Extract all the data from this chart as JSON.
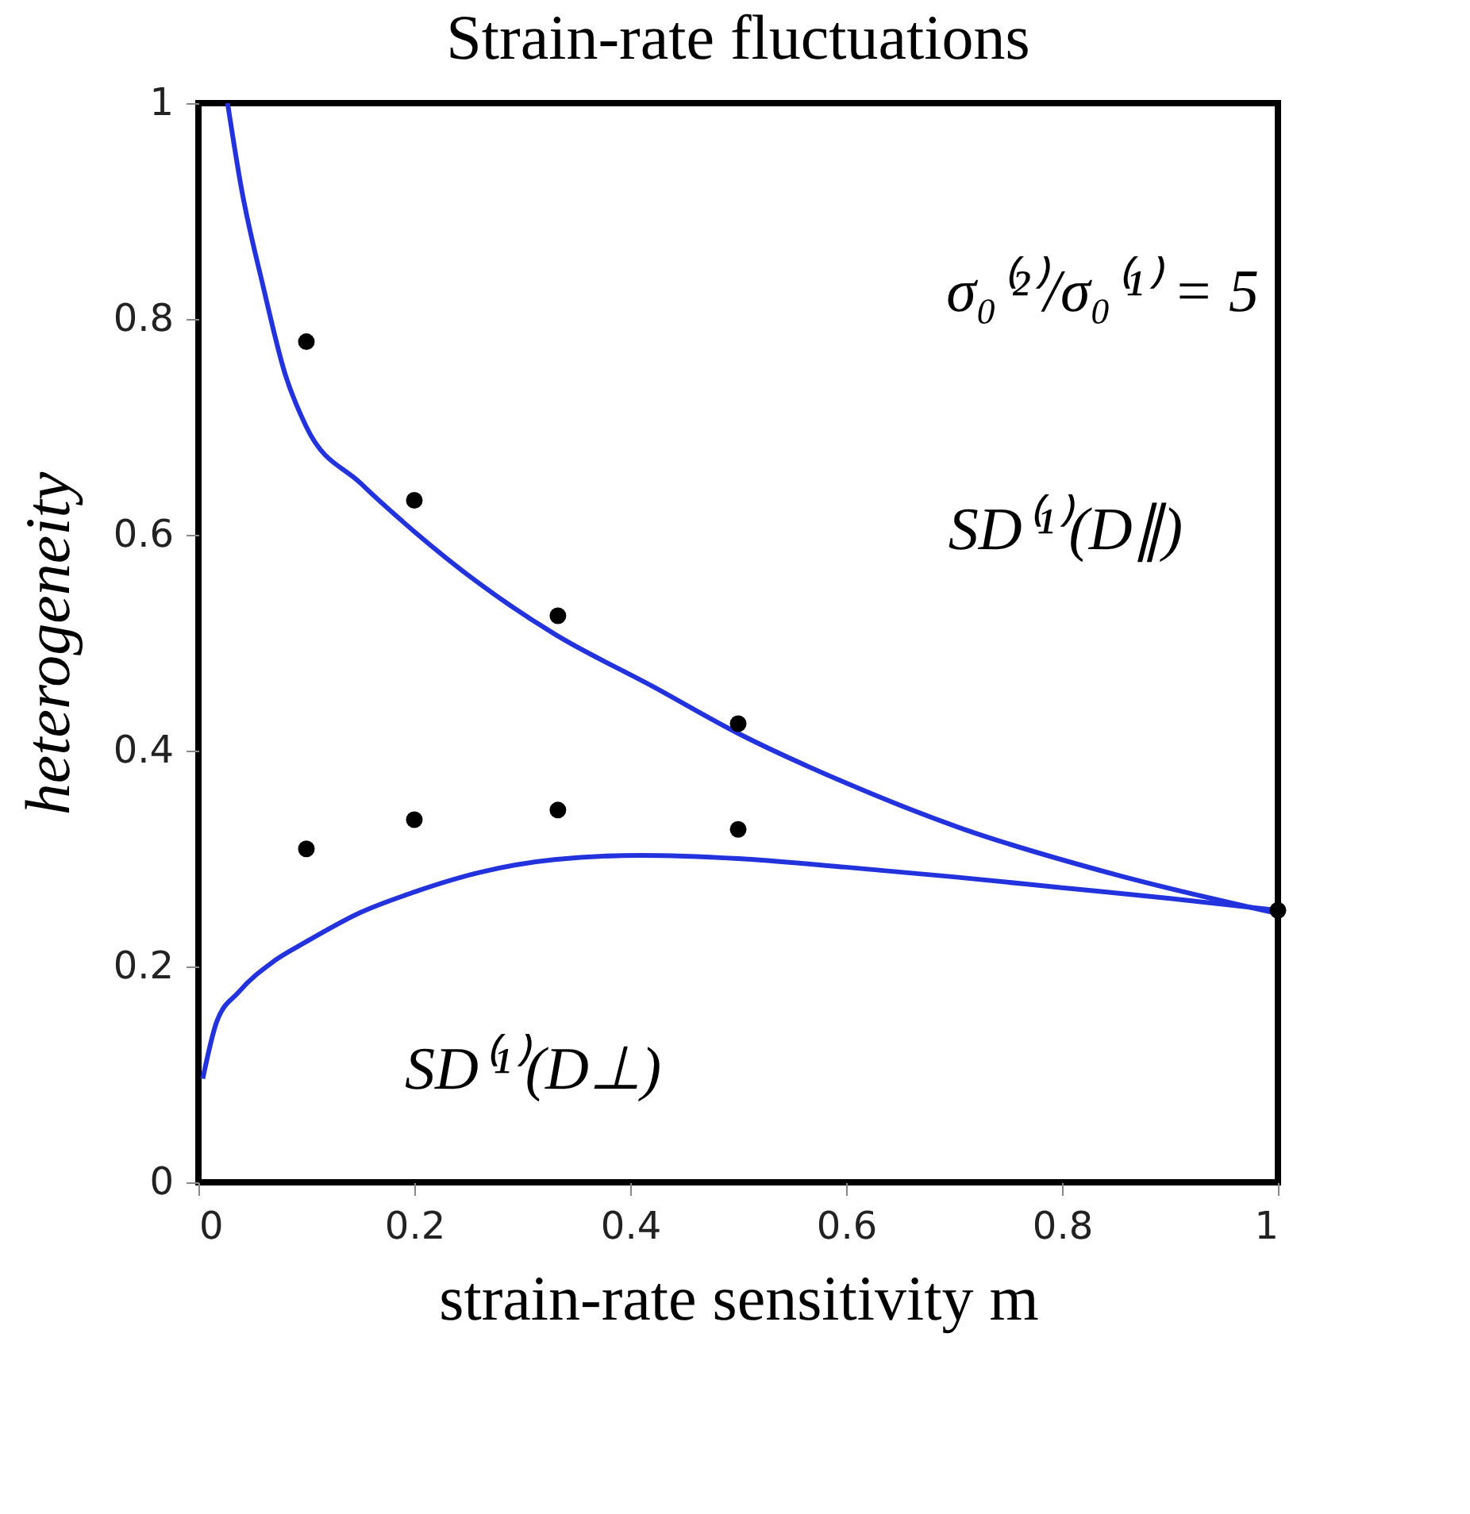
{
  "chart_data": {
    "type": "line",
    "title": "Strain-rate fluctuations",
    "xlabel": "strain-rate sensitivity m",
    "ylabel": "heterogeneity",
    "xlim": [
      0,
      1
    ],
    "ylim": [
      0,
      1
    ],
    "xticks": [
      {
        "value": 0,
        "label": "0"
      },
      0.2,
      0.4,
      0.6,
      0.8,
      {
        "value": 1,
        "label": "1"
      }
    ],
    "yticks": [
      {
        "value": 0,
        "label": "0"
      },
      0.2,
      0.4,
      0.6,
      0.8,
      {
        "value": 1,
        "label": "1"
      }
    ],
    "grid": false,
    "series": [
      {
        "color": "#2233dd",
        "x": [
          0.027,
          0.04,
          0.06,
          0.08,
          0.1,
          0.15,
          0.2,
          0.26,
          0.33,
          0.42,
          0.5,
          0.6,
          0.704,
          0.85,
          1.0
        ],
        "values": [
          1.0,
          0.92,
          0.83,
          0.75,
          0.7,
          0.648,
          0.603,
          0.555,
          0.508,
          0.46,
          0.416,
          0.37,
          0.329,
          0.285,
          0.249
        ]
      },
      {
        "color": "#2233dd",
        "x": [
          0.004,
          0.017,
          0.037,
          0.07,
          0.1,
          0.15,
          0.2,
          0.26,
          0.33,
          0.41,
          0.5,
          0.6,
          0.7,
          0.8,
          0.9,
          1.0
        ],
        "values": [
          0.096,
          0.149,
          0.176,
          0.205,
          0.223,
          0.25,
          0.269,
          0.287,
          0.299,
          0.303,
          0.3,
          0.292,
          0.283,
          0.273,
          0.263,
          0.252
        ]
      },
      {
        "type": "scatter",
        "color": "#000000",
        "marker": "circle",
        "x": [
          0.1,
          0.2,
          0.333,
          0.5,
          1.0
        ],
        "values": [
          0.779,
          0.632,
          0.525,
          0.425,
          0.252
        ]
      },
      {
        "type": "scatter",
        "color": "#000000",
        "marker": "circle",
        "x": [
          0.1,
          0.2,
          0.333,
          0.5
        ],
        "values": [
          0.309,
          0.336,
          0.345,
          0.327
        ]
      }
    ],
    "annotations": [
      "σ₀⁽²⁾/σ₀⁽¹⁾ = 5",
      "SD⁽¹⁾(D∥)",
      "SD⁽¹⁾(D⊥)"
    ]
  }
}
